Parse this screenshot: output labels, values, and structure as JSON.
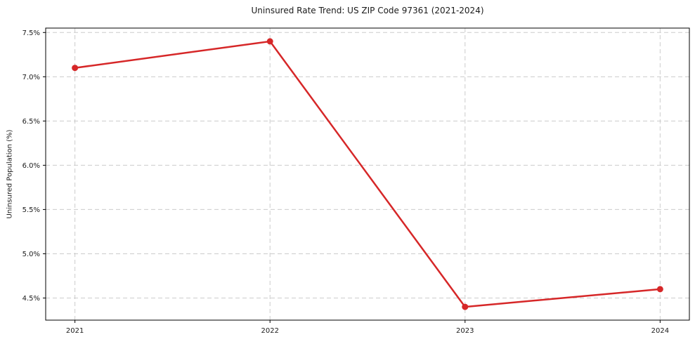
{
  "chart_data": {
    "type": "line",
    "title": "Uninsured Rate Trend: US ZIP Code 97361 (2021-2024)",
    "xlabel": "",
    "ylabel": "Uninsured Population (%)",
    "categories": [
      2021,
      2022,
      2023,
      2024
    ],
    "series": [
      {
        "name": "Uninsured Population (%)",
        "values": [
          7.1,
          7.4,
          4.4,
          4.6
        ]
      }
    ],
    "xticks": [
      "2021",
      "2022",
      "2023",
      "2024"
    ],
    "ytick_values": [
      4.5,
      5.0,
      5.5,
      6.0,
      6.5,
      7.0,
      7.5
    ],
    "yticks": [
      "4.5%",
      "5.0%",
      "5.5%",
      "6.0%",
      "6.5%",
      "7.0%",
      "7.5%"
    ],
    "xlim": [
      2020.85,
      2024.15
    ],
    "ylim": [
      4.25,
      7.55
    ],
    "grid": "dashed-both-axes",
    "legend": "none",
    "colors": {
      "line": "#d62728",
      "marker": "#d62728",
      "grid": "#cccccc",
      "spine": "#000000",
      "text": "#1a1a1a",
      "background": "#ffffff"
    }
  }
}
